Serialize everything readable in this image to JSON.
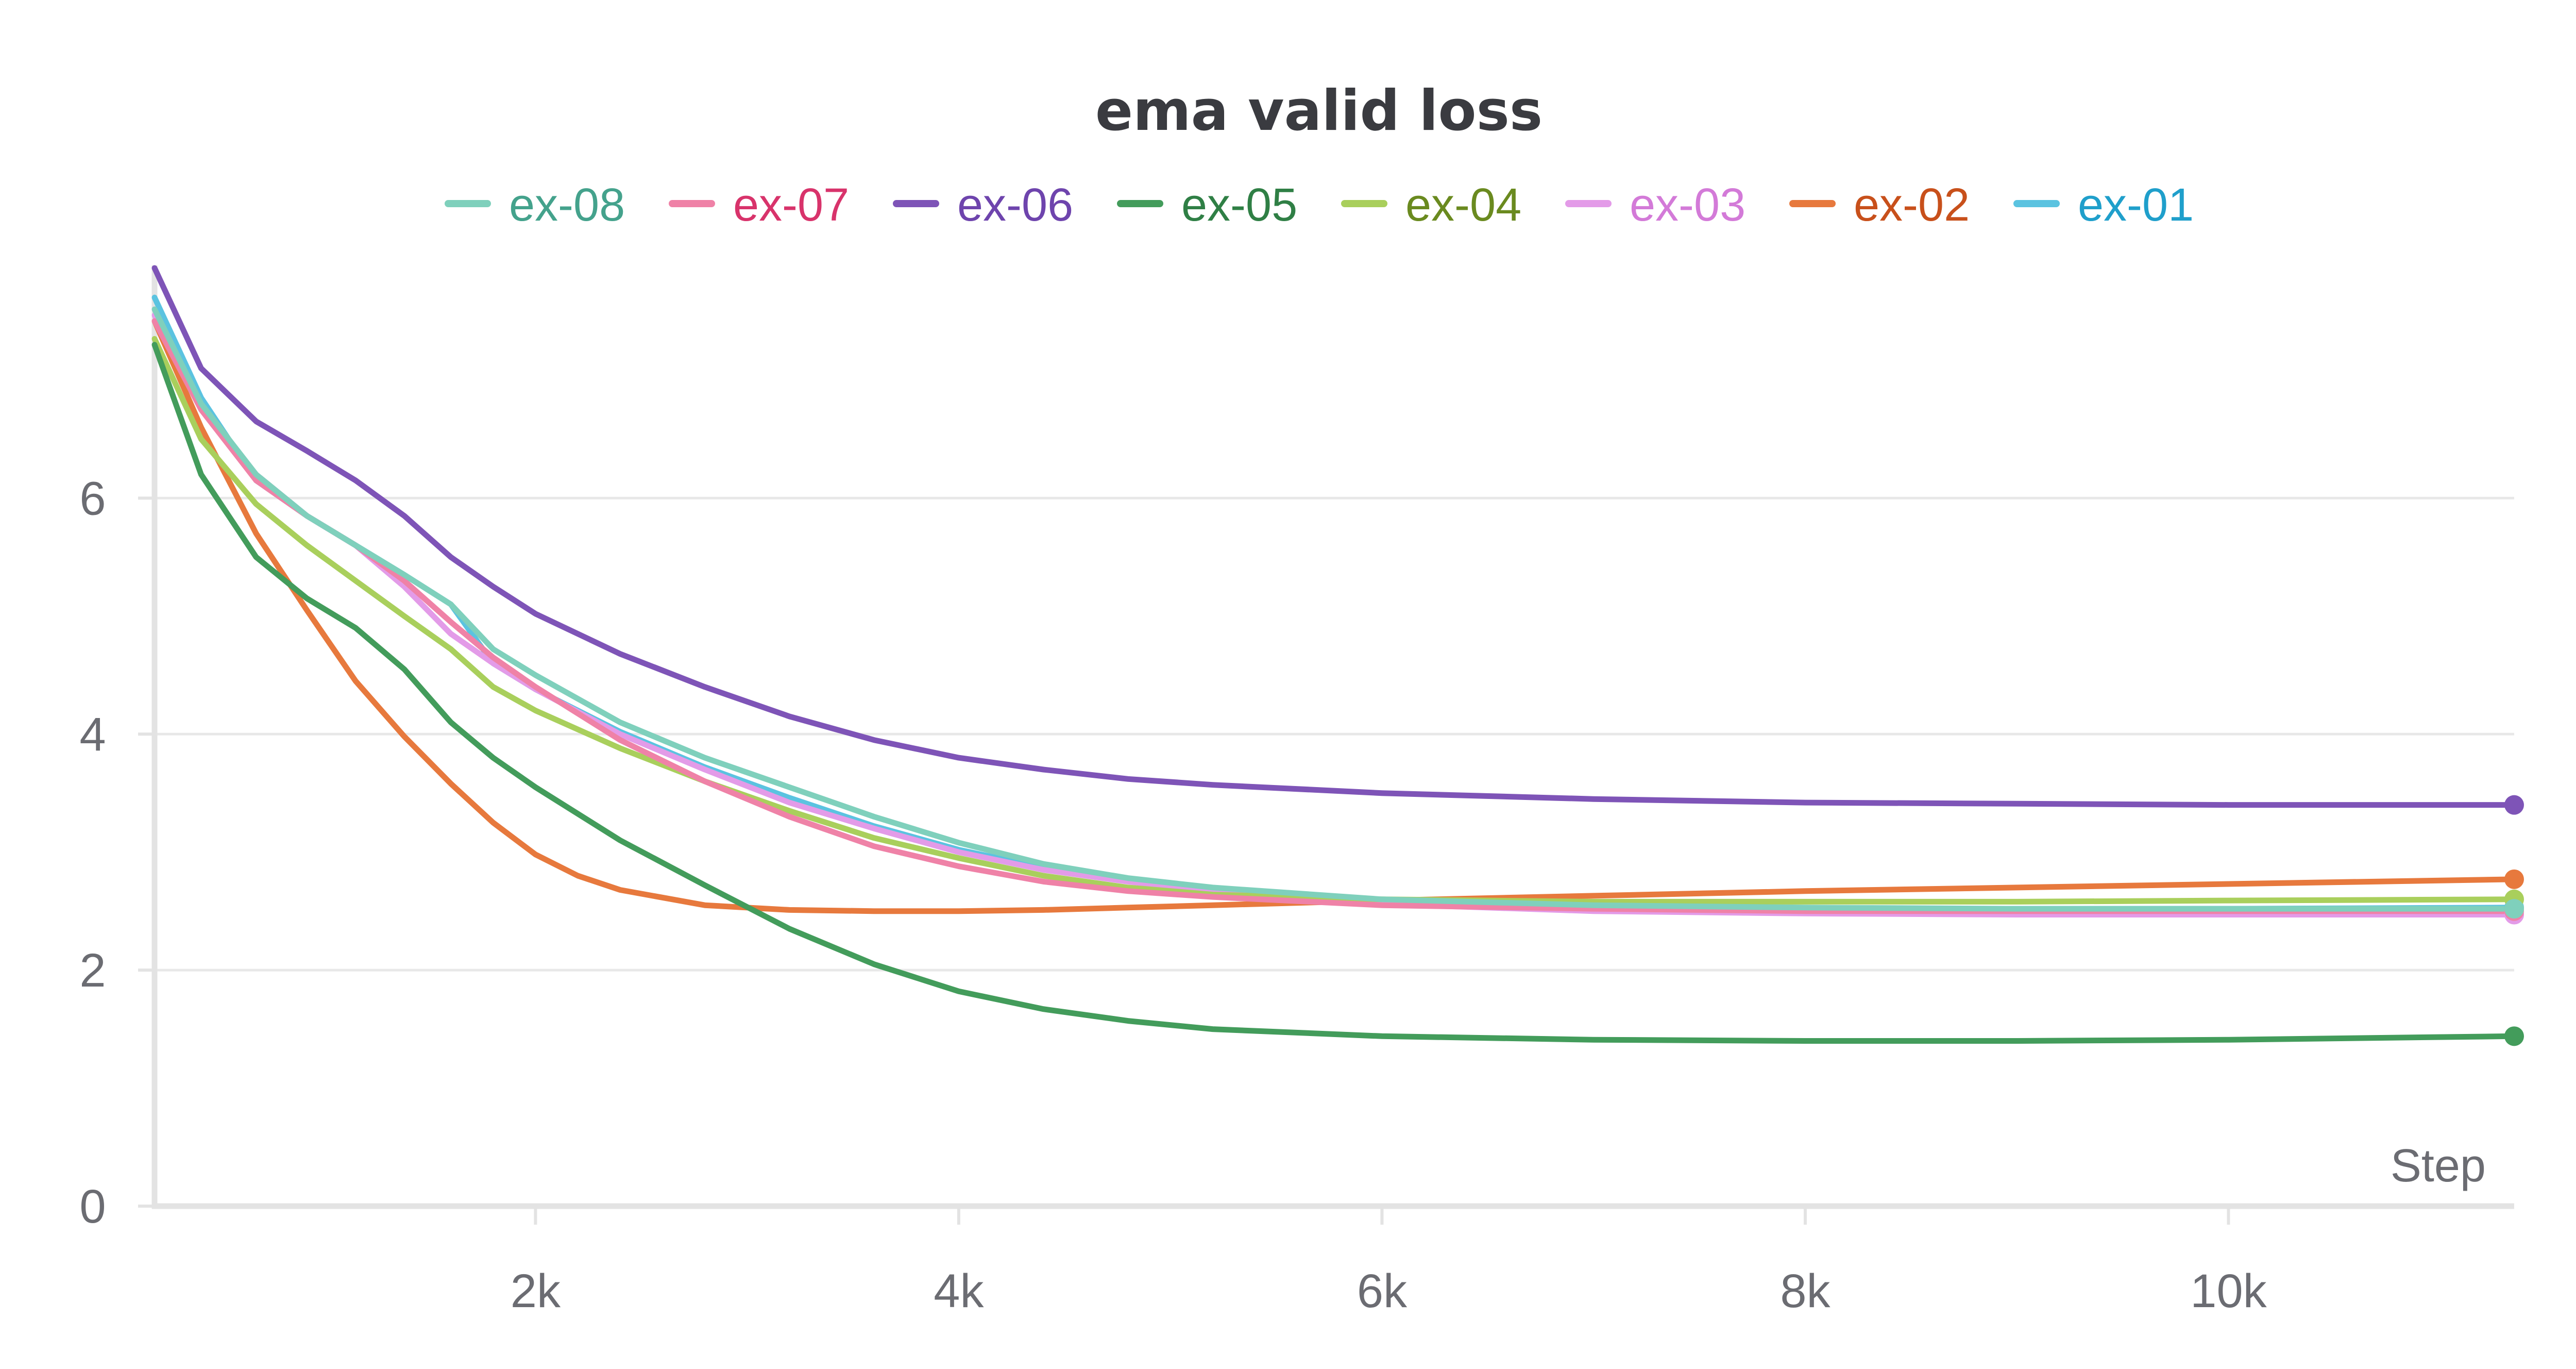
{
  "chart_data": {
    "type": "line",
    "title": "ema valid loss",
    "xlabel": "Step",
    "ylabel": "",
    "xlim": [
      200,
      11350
    ],
    "ylim": [
      0,
      7.95
    ],
    "x_ticks": [
      2000,
      4000,
      6000,
      8000,
      10000
    ],
    "x_tick_labels": [
      "2k",
      "4k",
      "6k",
      "8k",
      "10k"
    ],
    "y_ticks": [
      0,
      2,
      4,
      6
    ],
    "y_tick_labels": [
      "0",
      "2",
      "4",
      "6"
    ],
    "grid": "horizontal",
    "legend_position": "top",
    "series": [
      {
        "name": "ex-08",
        "color": "#7fd0bc",
        "text_color": "#44a28c",
        "x": [
          200,
          420,
          680,
          920,
          1150,
          1380,
          1600,
          1800,
          2000,
          2400,
          2800,
          3200,
          3600,
          4000,
          4400,
          4800,
          5200,
          6000,
          7000,
          8000,
          9000,
          10000,
          11350
        ],
        "y": [
          7.6,
          6.8,
          6.2,
          5.85,
          5.6,
          5.35,
          5.1,
          4.72,
          4.5,
          4.1,
          3.8,
          3.55,
          3.3,
          3.08,
          2.9,
          2.78,
          2.7,
          2.6,
          2.55,
          2.53,
          2.52,
          2.52,
          2.52
        ]
      },
      {
        "name": "ex-07",
        "color": "#ef82a7",
        "text_color": "#d8336b",
        "x": [
          200,
          420,
          680,
          920,
          1150,
          1380,
          1600,
          1800,
          2000,
          2400,
          2800,
          3200,
          3600,
          4000,
          4400,
          4800,
          5200,
          6000,
          7000,
          8000,
          9000,
          10000,
          11350
        ],
        "y": [
          7.5,
          6.75,
          6.15,
          5.85,
          5.6,
          5.3,
          4.95,
          4.65,
          4.4,
          3.95,
          3.6,
          3.3,
          3.05,
          2.88,
          2.75,
          2.67,
          2.62,
          2.55,
          2.52,
          2.5,
          2.5,
          2.5,
          2.5
        ]
      },
      {
        "name": "ex-06",
        "color": "#7e54b7",
        "text_color": "#6e44ad",
        "x": [
          200,
          420,
          680,
          920,
          1150,
          1380,
          1600,
          1800,
          2000,
          2400,
          2800,
          3200,
          3600,
          4000,
          4400,
          4800,
          5200,
          6000,
          7000,
          8000,
          9000,
          10000,
          11350
        ],
        "y": [
          7.95,
          7.1,
          6.65,
          6.4,
          6.15,
          5.85,
          5.5,
          5.25,
          5.02,
          4.68,
          4.4,
          4.15,
          3.95,
          3.8,
          3.7,
          3.62,
          3.57,
          3.5,
          3.45,
          3.42,
          3.41,
          3.4,
          3.4
        ]
      },
      {
        "name": "ex-05",
        "color": "#439c5b",
        "text_color": "#2f7f45",
        "x": [
          200,
          420,
          680,
          920,
          1150,
          1380,
          1600,
          1800,
          2000,
          2400,
          2800,
          3200,
          3600,
          4000,
          4400,
          4800,
          5200,
          6000,
          7000,
          8000,
          9000,
          10000,
          11350
        ],
        "y": [
          7.3,
          6.2,
          5.5,
          5.15,
          4.9,
          4.55,
          4.1,
          3.8,
          3.55,
          3.1,
          2.72,
          2.35,
          2.05,
          1.82,
          1.67,
          1.57,
          1.5,
          1.44,
          1.41,
          1.4,
          1.4,
          1.41,
          1.44
        ]
      },
      {
        "name": "ex-04",
        "color": "#a9cf5c",
        "text_color": "#6a8a1f",
        "x": [
          200,
          420,
          680,
          920,
          1150,
          1380,
          1600,
          1800,
          2000,
          2400,
          2800,
          3200,
          3600,
          4000,
          4400,
          4800,
          5200,
          6000,
          7000,
          8000,
          9000,
          10000,
          11350
        ],
        "y": [
          7.35,
          6.5,
          5.95,
          5.6,
          5.3,
          5.0,
          4.72,
          4.4,
          4.2,
          3.88,
          3.6,
          3.35,
          3.12,
          2.95,
          2.8,
          2.7,
          2.64,
          2.6,
          2.58,
          2.58,
          2.58,
          2.59,
          2.6
        ]
      },
      {
        "name": "ex-03",
        "color": "#e39be8",
        "text_color": "#d37ad8",
        "x": [
          200,
          420,
          680,
          920,
          1150,
          1380,
          1600,
          1800,
          2000,
          2400,
          2800,
          3200,
          3600,
          4000,
          4400,
          4800,
          5200,
          6000,
          7000,
          8000,
          9000,
          10000,
          11350
        ],
        "y": [
          7.55,
          6.75,
          6.2,
          5.85,
          5.6,
          5.25,
          4.85,
          4.6,
          4.38,
          4.0,
          3.7,
          3.42,
          3.2,
          3.0,
          2.85,
          2.75,
          2.67,
          2.56,
          2.5,
          2.48,
          2.47,
          2.47,
          2.47
        ]
      },
      {
        "name": "ex-02",
        "color": "#e7793d",
        "text_color": "#c8501b",
        "x": [
          200,
          420,
          680,
          920,
          1150,
          1380,
          1600,
          1800,
          2000,
          2200,
          2400,
          2800,
          3200,
          3600,
          4000,
          4400,
          4800,
          5200,
          6000,
          7000,
          8000,
          9000,
          10000,
          11350
        ],
        "y": [
          7.5,
          6.6,
          5.7,
          5.05,
          4.45,
          3.98,
          3.58,
          3.25,
          2.98,
          2.8,
          2.68,
          2.55,
          2.51,
          2.5,
          2.5,
          2.51,
          2.53,
          2.55,
          2.59,
          2.63,
          2.67,
          2.7,
          2.73,
          2.77
        ]
      },
      {
        "name": "ex-01",
        "color": "#5bc3e0",
        "text_color": "#1f9fcb",
        "x": [
          200,
          420,
          680,
          920,
          1150,
          1380,
          1600,
          1800,
          2000,
          2400,
          2800,
          3200,
          3600,
          4000,
          4400,
          4800,
          5200,
          6000,
          7000,
          8000,
          9000,
          10000,
          11350
        ],
        "y": [
          7.7,
          6.85,
          6.15,
          5.85,
          5.6,
          5.35,
          5.1,
          4.6,
          4.38,
          4.02,
          3.72,
          3.46,
          3.22,
          3.02,
          2.87,
          2.76,
          2.68,
          2.58,
          2.53,
          2.52,
          2.52,
          2.52,
          2.53
        ]
      }
    ]
  }
}
